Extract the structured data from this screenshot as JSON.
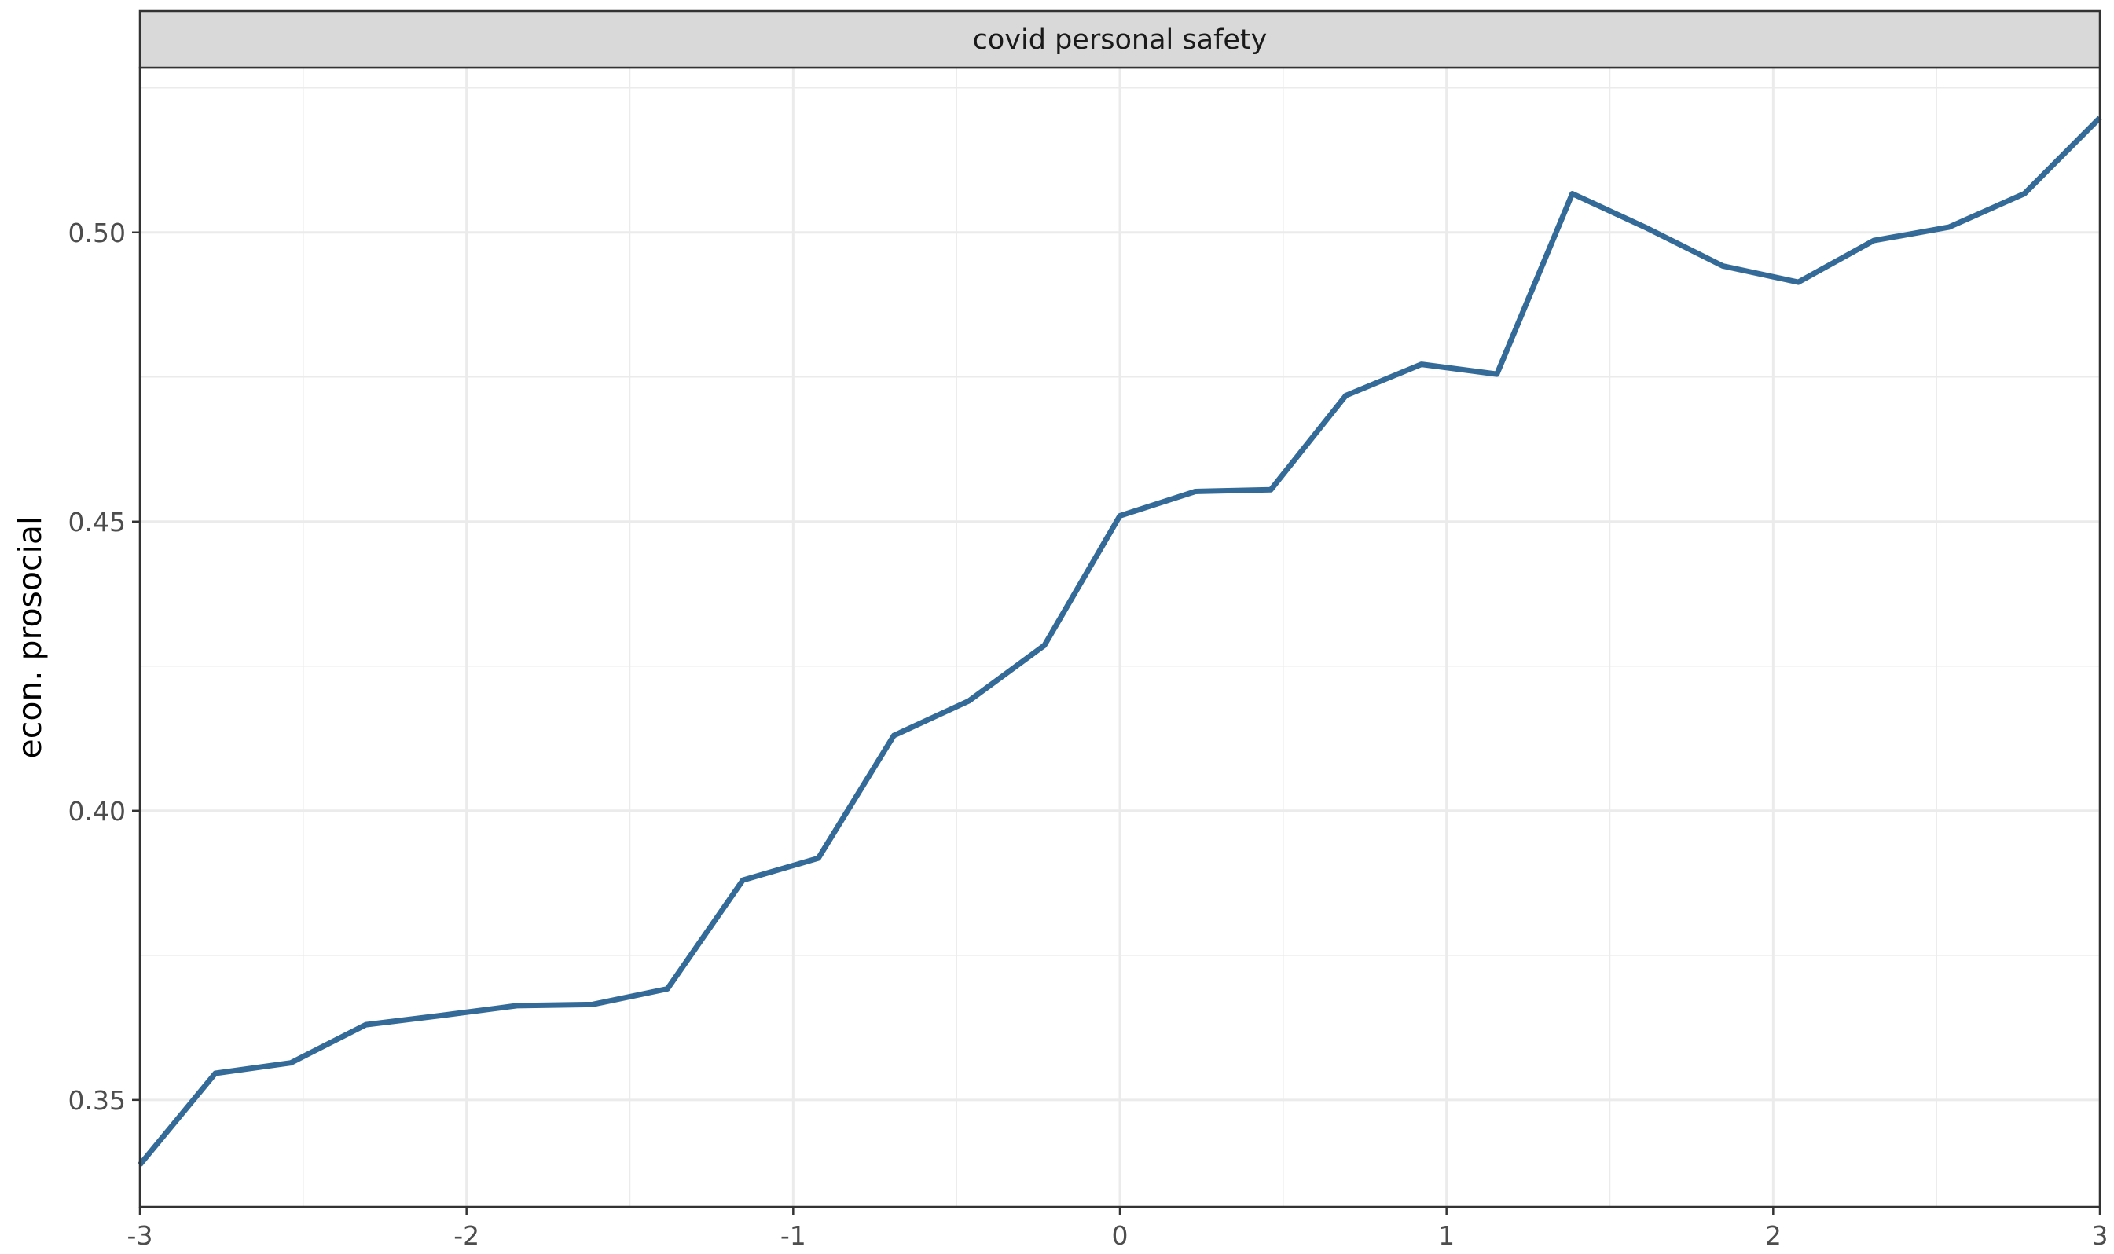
{
  "chart_data": {
    "type": "line",
    "facet_label": "covid personal safety",
    "xlabel": "",
    "ylabel": "econ. prosocial",
    "xlim": [
      -3,
      3
    ],
    "ylim": [
      0.3315,
      0.5285
    ],
    "x_ticks": [
      -3,
      -2,
      -1,
      0,
      1,
      2,
      3
    ],
    "x_tick_labels": [
      "-3",
      "-2",
      "-1",
      "0",
      "1",
      "2",
      "3"
    ],
    "y_ticks": [
      0.35,
      0.4,
      0.45,
      0.5
    ],
    "y_tick_labels": [
      "0.35",
      "0.40",
      "0.45",
      "0.50"
    ],
    "grid": true,
    "line_color": "#336a98",
    "series": [
      {
        "x": [
          -3.0,
          -2.769,
          -2.538,
          -2.308,
          -2.077,
          -1.846,
          -1.615,
          -1.385,
          -1.154,
          -0.923,
          -0.692,
          -0.462,
          -0.231,
          0.0,
          0.231,
          0.462,
          0.692,
          0.923,
          1.154,
          1.385,
          1.615,
          1.846,
          2.077,
          2.308,
          2.538,
          2.769,
          3.0
        ],
        "values": [
          0.3388,
          0.3546,
          0.3564,
          0.363,
          0.3646,
          0.3663,
          0.3665,
          0.3692,
          0.388,
          0.3918,
          0.413,
          0.419,
          0.4286,
          0.451,
          0.4552,
          0.4555,
          0.4718,
          0.4772,
          0.4755,
          0.5067,
          0.5007,
          0.4942,
          0.4914,
          0.4986,
          0.5009,
          0.5067,
          0.5198
        ]
      }
    ]
  }
}
